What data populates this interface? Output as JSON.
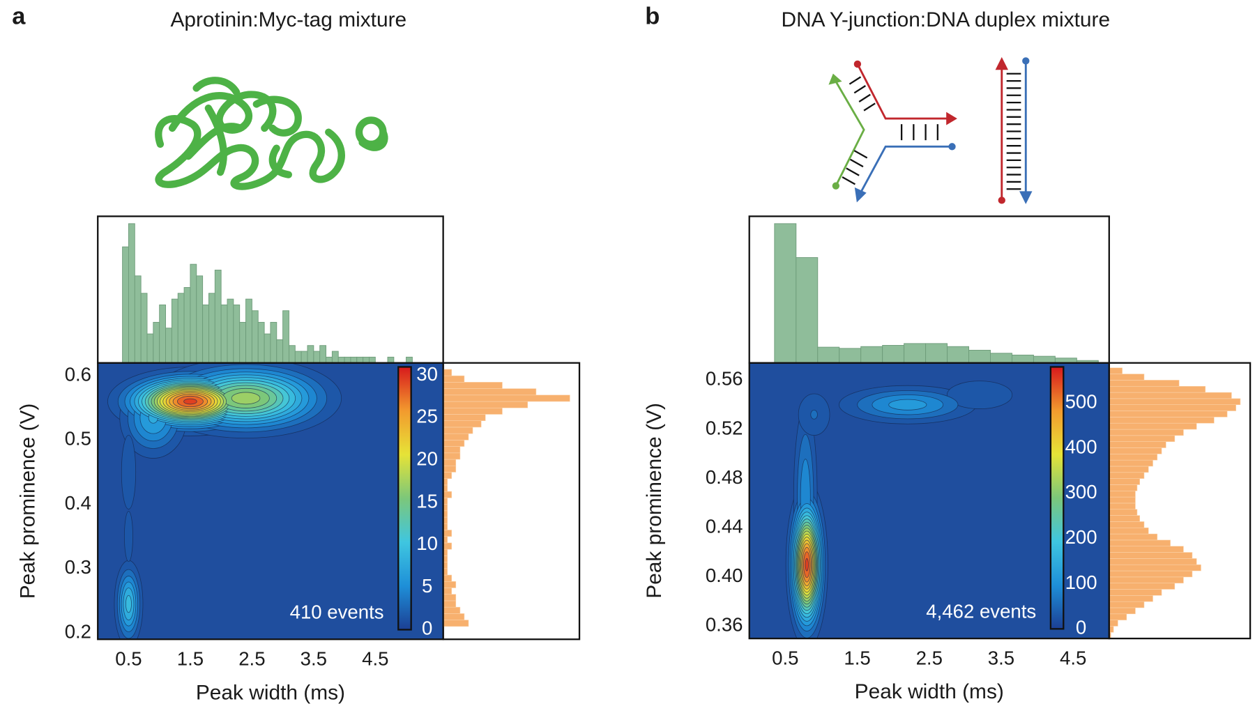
{
  "chart_data": [
    {
      "type": "contour",
      "panel": "a",
      "title": "Aprotinin:Myc-tag mixture",
      "xlabel": "Peak width (ms)",
      "ylabel": "Peak prominence (V)",
      "annotation": "410 events",
      "xlim": [
        0,
        5.6
      ],
      "xticks": [
        0.5,
        1.5,
        2.5,
        3.5,
        4.5
      ],
      "ylim": [
        0.19,
        0.62
      ],
      "yticks": [
        0.2,
        0.3,
        0.4,
        0.5,
        0.6
      ],
      "clim": [
        0,
        31
      ],
      "cticks": [
        0,
        5,
        10,
        15,
        20,
        25,
        30
      ],
      "colormap": [
        "#1c3f94",
        "#1e8fd8",
        "#3fc6e0",
        "#7cc77a",
        "#e6e337",
        "#f29a2e",
        "#d7191c"
      ],
      "background": "#1f4e9e",
      "peaks": [
        {
          "x": 1.5,
          "y": 0.56,
          "sx": 0.55,
          "sy": 0.022,
          "value": 30
        },
        {
          "x": 2.4,
          "y": 0.565,
          "sx": 0.7,
          "sy": 0.028,
          "value": 18
        },
        {
          "x": 0.9,
          "y": 0.535,
          "sx": 0.3,
          "sy": 0.035,
          "value": 8
        },
        {
          "x": 0.5,
          "y": 0.245,
          "sx": 0.12,
          "sy": 0.035,
          "value": 10
        },
        {
          "x": 0.5,
          "y": 0.45,
          "sx": 0.1,
          "sy": 0.05,
          "value": 3
        },
        {
          "x": 0.5,
          "y": 0.35,
          "sx": 0.07,
          "sy": 0.04,
          "value": 2.5
        }
      ],
      "x_hist": {
        "color": "#8fbd9a",
        "bins": [
          0.4,
          0.5,
          0.6,
          0.7,
          0.8,
          0.9,
          1.0,
          1.1,
          1.2,
          1.3,
          1.4,
          1.5,
          1.6,
          1.7,
          1.8,
          1.9,
          2.0,
          2.1,
          2.2,
          2.3,
          2.4,
          2.5,
          2.6,
          2.7,
          2.8,
          2.9,
          3.0,
          3.1,
          3.2,
          3.3,
          3.4,
          3.5,
          3.6,
          3.7,
          3.8,
          3.9,
          4.0,
          4.1,
          4.2,
          4.3,
          4.4,
          4.5,
          4.6,
          4.7,
          4.8,
          4.9,
          5.0,
          5.1,
          5.2
        ],
        "counts": [
          20,
          24,
          15,
          12,
          5,
          7,
          10,
          6,
          11,
          12,
          13,
          17,
          15,
          10,
          12,
          16,
          10,
          11,
          10,
          7,
          11,
          9,
          7,
          5,
          7,
          4,
          9,
          3,
          2,
          2,
          3,
          2,
          3,
          1,
          2,
          1,
          1,
          1,
          1,
          1,
          1,
          0,
          0,
          1,
          0,
          0,
          1,
          0
        ]
      },
      "y_hist": {
        "color": "#f7b06e",
        "bins": [
          0.21,
          0.22,
          0.23,
          0.24,
          0.25,
          0.26,
          0.27,
          0.28,
          0.29,
          0.3,
          0.31,
          0.32,
          0.33,
          0.34,
          0.35,
          0.36,
          0.37,
          0.38,
          0.39,
          0.4,
          0.41,
          0.42,
          0.43,
          0.44,
          0.45,
          0.46,
          0.47,
          0.48,
          0.49,
          0.5,
          0.51,
          0.52,
          0.53,
          0.54,
          0.55,
          0.56,
          0.57,
          0.58,
          0.59,
          0.6,
          0.61
        ],
        "counts": [
          6,
          5,
          4,
          3,
          3,
          2,
          3,
          2,
          1,
          1,
          1,
          1,
          2,
          1,
          2,
          1,
          1,
          1,
          1,
          1,
          2,
          1,
          1,
          2,
          3,
          3,
          4,
          4,
          5,
          6,
          7,
          9,
          10,
          14,
          20,
          30,
          22,
          14,
          5,
          2
        ]
      }
    },
    {
      "type": "contour",
      "panel": "b",
      "title": "DNA Y-junction:DNA duplex mixture",
      "xlabel": "Peak width (ms)",
      "ylabel": "Peak prominence (V)",
      "annotation": "4,462 events",
      "xlim": [
        0,
        5
      ],
      "xticks": [
        0.5,
        1.5,
        2.5,
        3.5,
        4.5
      ],
      "ylim": [
        0.35,
        0.574
      ],
      "yticks": [
        0.36,
        {
          "value": 0.4,
          "label": "0.40"
        },
        0.44,
        0.48,
        0.52,
        0.56
      ],
      "clim": [
        0,
        580
      ],
      "cticks": [
        0,
        100,
        200,
        300,
        400,
        500
      ],
      "colormap": [
        "#1c3f94",
        "#1e8fd8",
        "#3fc6e0",
        "#7cc77a",
        "#e6e337",
        "#f29a2e",
        "#d7191c"
      ],
      "background": "#1f4e9e",
      "peaks": [
        {
          "x": 0.8,
          "y": 0.41,
          "sx": 0.12,
          "sy": 0.028,
          "value": 560
        },
        {
          "x": 0.78,
          "y": 0.465,
          "sx": 0.1,
          "sy": 0.045,
          "value": 110
        },
        {
          "x": 0.9,
          "y": 0.532,
          "sx": 0.18,
          "sy": 0.014,
          "value": 60
        },
        {
          "x": 2.2,
          "y": 0.54,
          "sx": 0.55,
          "sy": 0.009,
          "value": 130
        },
        {
          "x": 3.2,
          "y": 0.548,
          "sx": 0.4,
          "sy": 0.01,
          "value": 55
        }
      ],
      "x_hist": {
        "color": "#8fbd9a",
        "bins": [
          0.35,
          0.65,
          0.95,
          1.25,
          1.55,
          1.85,
          2.15,
          2.45,
          2.75,
          3.05,
          3.35,
          3.65,
          3.95,
          4.25,
          4.55,
          4.85
        ],
        "counts": [
          1150,
          870,
          130,
          120,
          135,
          145,
          160,
          160,
          135,
          105,
          80,
          65,
          55,
          40,
          20
        ]
      },
      "y_hist": {
        "color": "#f7b06e",
        "bins": [
          0.35,
          0.355,
          0.36,
          0.365,
          0.37,
          0.375,
          0.38,
          0.385,
          0.39,
          0.395,
          0.4,
          0.405,
          0.41,
          0.415,
          0.42,
          0.425,
          0.43,
          0.435,
          0.44,
          0.445,
          0.45,
          0.455,
          0.46,
          0.465,
          0.47,
          0.475,
          0.48,
          0.485,
          0.49,
          0.495,
          0.5,
          0.505,
          0.51,
          0.515,
          0.52,
          0.525,
          0.53,
          0.535,
          0.54,
          0.545,
          0.55,
          0.555,
          0.56,
          0.565,
          0.57
        ],
        "counts": [
          2,
          5,
          10,
          20,
          30,
          40,
          50,
          60,
          75,
          85,
          95,
          105,
          100,
          95,
          85,
          70,
          55,
          45,
          40,
          35,
          32,
          30,
          30,
          30,
          32,
          35,
          40,
          45,
          50,
          55,
          60,
          65,
          75,
          85,
          100,
          120,
          135,
          145,
          150,
          140,
          110,
          80,
          40,
          15
        ]
      }
    }
  ]
}
